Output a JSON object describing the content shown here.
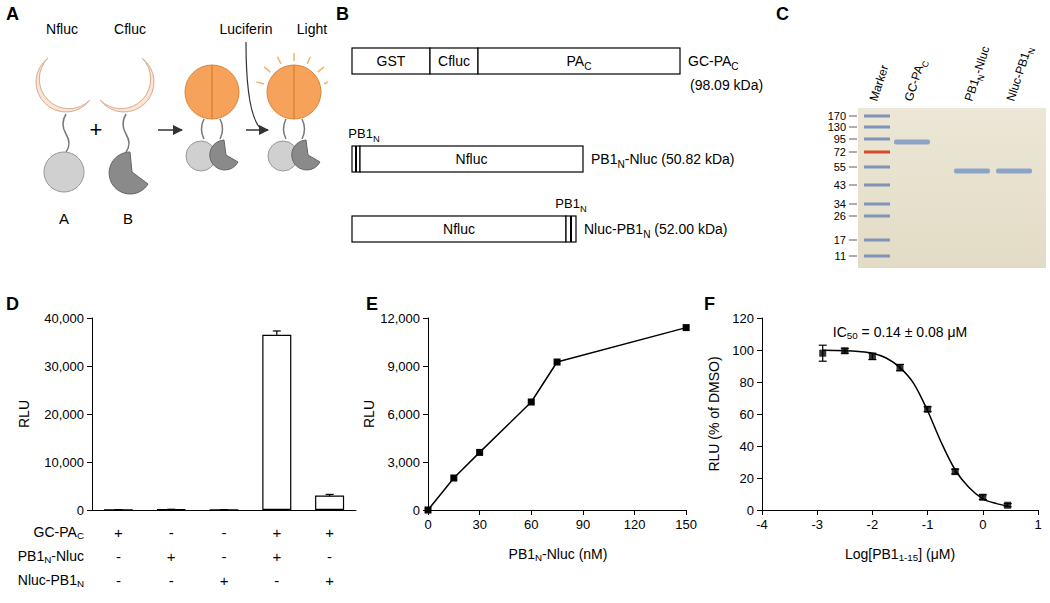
{
  "panel_labels": [
    "A",
    "B",
    "C",
    "D",
    "E",
    "F"
  ],
  "diagram_a": {
    "top_labels": [
      "Nfluc",
      "Cfluc",
      "Luciferin"
    ],
    "light": "Light",
    "parts": [
      "A",
      "B"
    ],
    "plus": "+"
  },
  "diagram_b": {
    "constructs": [
      {
        "domains": [
          "GST",
          "Cfluc",
          [
            "PA",
            {
              "sub": "C"
            }
          ]
        ],
        "name": [
          "GC-PA",
          {
            "sub": "C"
          }
        ],
        "mass": "(98.09 kDa)"
      },
      {
        "domains": [
          {
            "tag": [
              "PB1",
              {
                "sub": "N"
              }
            ]
          },
          "Nfluc"
        ],
        "name": [
          "PB1",
          {
            "sub": "N"
          },
          "-Nluc"
        ],
        "mass": "(50.82 kDa)"
      },
      {
        "domains": [
          "Nfluc",
          {
            "tag": [
              "PB1",
              {
                "sub": "N"
              }
            ]
          }
        ],
        "name": [
          "Nluc-PB1",
          {
            "sub": "N"
          }
        ],
        "mass": "(52.00 kDa)"
      }
    ]
  },
  "gel_c": {
    "lanes": [
      "Marker",
      [
        "GC-PA",
        {
          "sub": "C"
        }
      ],
      [
        "PB1",
        {
          "sub": "N"
        },
        "-Nluc"
      ],
      [
        "Nluc-PB1",
        {
          "sub": "N"
        }
      ]
    ],
    "marker_kda": [
      170,
      130,
      95,
      72,
      55,
      43,
      34,
      26,
      17,
      11
    ]
  },
  "chart_data": [
    {
      "type": "bar",
      "categories": [
        null,
        null,
        null,
        null,
        null
      ],
      "values": [
        60,
        120,
        80,
        36500,
        3000
      ],
      "errors": [
        0,
        0,
        0,
        800,
        250
      ],
      "color": "#ffffff",
      "ylabel": "RLU",
      "grid": false,
      "ylim": [
        0,
        40000
      ],
      "yticks": [
        0,
        {
          "value": 10000,
          "label": "10,000"
        },
        {
          "value": 20000,
          "label": "20,000"
        },
        {
          "value": 30000,
          "label": "30,000"
        },
        {
          "value": 40000,
          "label": "40,000"
        }
      ],
      "conditions": [
        {
          "name": [
            "GC-PA",
            {
              "sub": "C"
            }
          ],
          "signs": [
            "+",
            "-",
            "-",
            "+",
            "+"
          ]
        },
        {
          "name": [
            "PB1",
            {
              "sub": "N"
            },
            "-Nluc"
          ],
          "signs": [
            "-",
            "+",
            "-",
            "+",
            "-"
          ]
        },
        {
          "name": [
            "Nluc-PB1",
            {
              "sub": "N"
            }
          ],
          "signs": [
            "-",
            "-",
            "+",
            "-",
            "+"
          ]
        }
      ]
    },
    {
      "type": "line",
      "x": [
        0,
        15,
        30,
        60,
        75,
        150
      ],
      "values": [
        0,
        2000,
        3600,
        6750,
        9250,
        11400
      ],
      "color": "#000000",
      "marker": "square",
      "grid": false,
      "xlabel": [
        "PB1",
        {
          "sub": "N"
        },
        "-Nluc (nM)"
      ],
      "ylabel": "RLU",
      "xlim": [
        0,
        150
      ],
      "xticks": [
        0,
        30,
        60,
        90,
        120,
        150
      ],
      "ylim": [
        0,
        12000
      ],
      "yticks": [
        0,
        {
          "value": 3000,
          "label": "3,000"
        },
        {
          "value": 6000,
          "label": "6,000"
        },
        {
          "value": 9000,
          "label": "9,000"
        },
        {
          "value": 12000,
          "label": "12,000"
        }
      ]
    },
    {
      "type": "scatter",
      "grid": false,
      "annotation": [
        "IC",
        {
          "sub": "50"
        },
        " = 0.14 ± 0.08 μM"
      ],
      "xlabel": [
        "Log[PB1",
        {
          "sub": "1-15"
        },
        "] (μM)"
      ],
      "ylabel": "RLU (% of DMSO)",
      "xlim": [
        -4,
        1
      ],
      "xticks": [
        -4,
        -3,
        -2,
        -1,
        0,
        1
      ],
      "ylim": [
        0,
        120
      ],
      "yticks": [
        0,
        20,
        40,
        60,
        80,
        100,
        120
      ],
      "series": [
        {
          "type": "scatter",
          "marker": "square",
          "color": "#000000",
          "x": [
            -2.9,
            -2.5,
            -2.0,
            -1.5,
            -1.0,
            -0.5,
            0.0,
            0.45
          ],
          "values": [
            98,
            99.5,
            96,
            89,
            63,
            24,
            8,
            3
          ],
          "errors": [
            5,
            1.5,
            2,
            2,
            1.5,
            1.5,
            1.5,
            1
          ]
        },
        {
          "type": "line",
          "color": "#000000",
          "x": [
            -2.9,
            -2.5,
            -2.25,
            -2.0,
            -1.75,
            -1.5,
            -1.25,
            -1.0,
            -0.75,
            -0.5,
            -0.25,
            0.0,
            0.25,
            0.45
          ],
          "values": [
            99.8,
            99.5,
            99,
            98,
            95,
            89,
            79,
            62,
            42,
            25,
            14,
            7,
            4,
            2.5
          ]
        }
      ]
    }
  ]
}
